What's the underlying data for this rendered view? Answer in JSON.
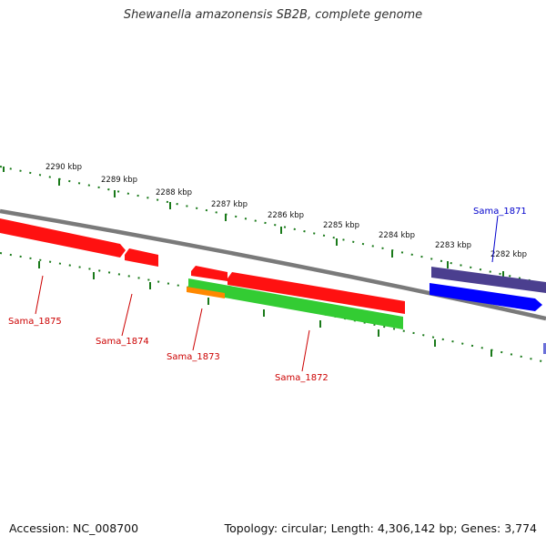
{
  "title": "Shewanella amazonensis SB2B, complete genome",
  "footer": {
    "accession": "Accession: NC_008700",
    "topology": "Topology: circular; Length: 4,306,142 bp; Genes: 3,774"
  },
  "ticks": [
    "2290 kbp",
    "2289 kbp",
    "2288 kbp",
    "2287 kbp",
    "2286 kbp",
    "2285 kbp",
    "2284 kbp",
    "2283 kbp",
    "2282 kbp"
  ],
  "genes": [
    "Sama_1875",
    "Sama_1874",
    "Sama_1873",
    "Sama_1872",
    "Sama_1871"
  ],
  "colors": {
    "forward_cds": "#ff0000",
    "reverse_cds_green": "#33cc33",
    "orange_feature": "#ff8800",
    "blue_feature": "#0000ff",
    "purple_feature": "#4b3f8f",
    "backbone": "#888888",
    "tick": "#1a7a1a",
    "label_red": "#cc0000",
    "label_blue": "#0000cc"
  }
}
